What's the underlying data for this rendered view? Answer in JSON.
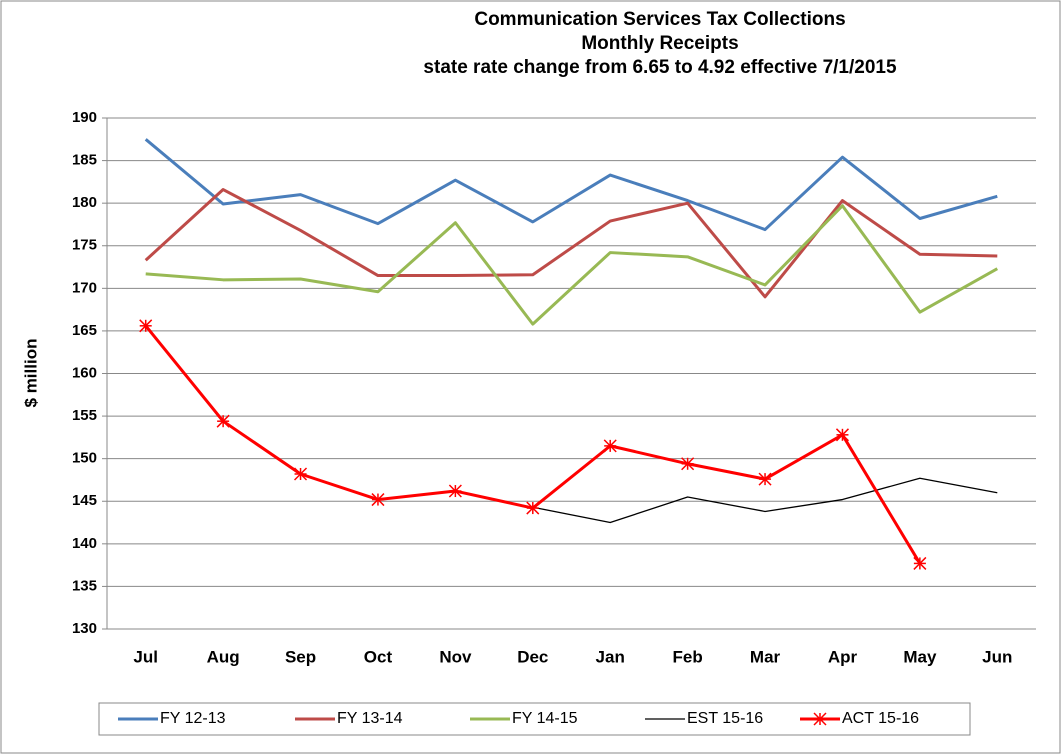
{
  "chart_data": {
    "type": "line",
    "title": [
      "Communication Services Tax Collections",
      "Monthly Receipts",
      "state rate change from 6.65 to 4.92 effective 7/1/2015"
    ],
    "y_label": "$ million",
    "categories": [
      "Jul",
      "Aug",
      "Sep",
      "Oct",
      "Nov",
      "Dec",
      "Jan",
      "Feb",
      "Mar",
      "Apr",
      "May",
      "Jun"
    ],
    "series": [
      {
        "name": "FY 12-13",
        "color": "#4a7ebb",
        "width": 3,
        "values": [
          187.5,
          179.9,
          181.0,
          177.6,
          182.7,
          177.8,
          183.3,
          180.3,
          176.9,
          185.4,
          178.2,
          180.8
        ]
      },
      {
        "name": "FY 13-14",
        "color": "#be4b48",
        "width": 3,
        "values": [
          173.3,
          181.6,
          176.8,
          171.5,
          171.5,
          171.6,
          177.9,
          180.0,
          169.0,
          180.3,
          174.0,
          173.8
        ]
      },
      {
        "name": "FY 14-15",
        "color": "#98b954",
        "width": 3,
        "values": [
          171.7,
          171.0,
          171.1,
          169.6,
          177.7,
          165.8,
          174.2,
          173.7,
          170.4,
          179.7,
          167.2,
          172.3
        ]
      },
      {
        "name": "EST 15-16",
        "color": "#000000",
        "width": 1.3,
        "values": [
          null,
          null,
          null,
          null,
          null,
          144.3,
          142.5,
          145.5,
          143.8,
          145.2,
          147.7,
          146.0
        ]
      },
      {
        "name": "ACT 15-16",
        "color": "#ff0000",
        "width": 3,
        "marker": "star",
        "values": [
          165.6,
          154.4,
          148.2,
          145.2,
          146.2,
          144.2,
          151.5,
          149.4,
          147.6,
          152.8,
          137.7,
          null
        ]
      }
    ],
    "ylim": [
      130,
      190
    ],
    "yticks": [
      130,
      135,
      140,
      145,
      150,
      155,
      160,
      165,
      170,
      175,
      180,
      185,
      190
    ],
    "grid": true
  }
}
